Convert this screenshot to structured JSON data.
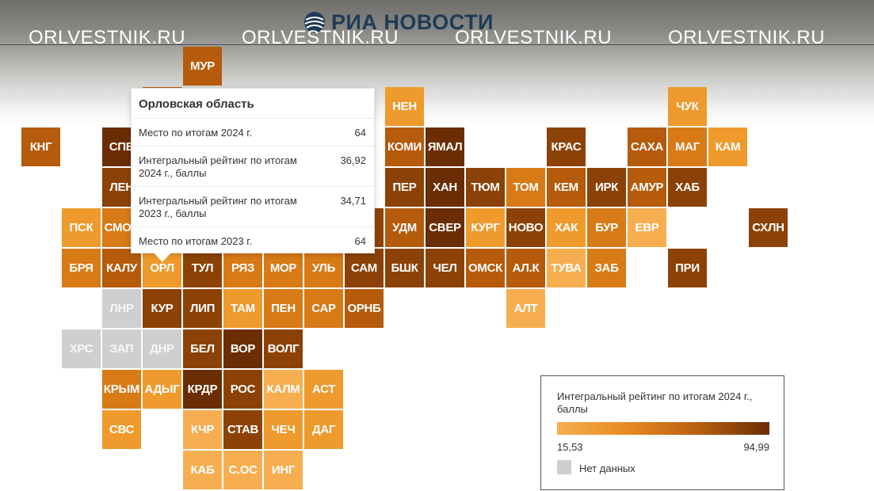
{
  "header": {
    "logo_text": "РИА НОВОСТИ",
    "watermarks": [
      "ORLVESTNIK.RU",
      "ORLVESTNIK.RU",
      "ORLVESTNIK.RU",
      "ORLVESTNIK.RU"
    ]
  },
  "colors": {
    "scale_low": "#f6ae50",
    "scale_high": "#6a2d04",
    "no_data": "#cfcfcf"
  },
  "tooltip": {
    "title": "Орловская область",
    "rows": [
      {
        "label": "Место по итогам 2024 г.",
        "value": "64"
      },
      {
        "label": "Интегральный рейтинг по итогам 2024 г., баллы",
        "value": "36,92"
      },
      {
        "label": "Интегральный рейтинг по итогам 2023 г., баллы",
        "value": "34,71"
      },
      {
        "label": "Место по итогам 2023 г.",
        "value": "64"
      }
    ]
  },
  "legend": {
    "title": "Интегральный рейтинг по итогам 2024 г., баллы",
    "min_label": "15,53",
    "max_label": "94,99",
    "no_data_label": "Нет данных"
  },
  "map_data": {
    "tiles": [
      {
        "label": "МУР",
        "col": 4,
        "row": 0,
        "level": 3
      },
      {
        "label": "",
        "col": 3,
        "row": 1,
        "level": 3
      },
      {
        "label": "НЕН",
        "col": 9,
        "row": 1,
        "level": 1
      },
      {
        "label": "ЧУК",
        "col": 16,
        "row": 1,
        "level": 1
      },
      {
        "label": "КНГ",
        "col": 0,
        "row": 2,
        "level": 3
      },
      {
        "label": "СПБ",
        "col": 2,
        "row": 2,
        "level": 5
      },
      {
        "label": "КОМИ",
        "col": 9,
        "row": 2,
        "level": 3
      },
      {
        "label": "ЯМАЛ",
        "col": 10,
        "row": 2,
        "level": 5
      },
      {
        "label": "КРАС",
        "col": 13,
        "row": 2,
        "level": 4
      },
      {
        "label": "САХА",
        "col": 15,
        "row": 2,
        "level": 3
      },
      {
        "label": "МАГ",
        "col": 16,
        "row": 2,
        "level": 2
      },
      {
        "label": "КАМ",
        "col": 17,
        "row": 2,
        "level": 1
      },
      {
        "label": "ЛЕН",
        "col": 2,
        "row": 3,
        "level": 4
      },
      {
        "label": "ПЕР",
        "col": 9,
        "row": 3,
        "level": 4
      },
      {
        "label": "ХАН",
        "col": 10,
        "row": 3,
        "level": 5
      },
      {
        "label": "ТЮМ",
        "col": 11,
        "row": 3,
        "level": 4
      },
      {
        "label": "ТОМ",
        "col": 12,
        "row": 3,
        "level": 2
      },
      {
        "label": "КЕМ",
        "col": 13,
        "row": 3,
        "level": 3
      },
      {
        "label": "ИРК",
        "col": 14,
        "row": 3,
        "level": 4
      },
      {
        "label": "АМУР",
        "col": 15,
        "row": 3,
        "level": 3
      },
      {
        "label": "ХАБ",
        "col": 16,
        "row": 3,
        "level": 4
      },
      {
        "label": "ПСК",
        "col": 1,
        "row": 4,
        "level": 1
      },
      {
        "label": "СМОЛ",
        "col": 2,
        "row": 4,
        "level": 2
      },
      {
        "label": "",
        "col": 8,
        "row": 4,
        "level": 4
      },
      {
        "label": "УДМ",
        "col": 9,
        "row": 4,
        "level": 3
      },
      {
        "label": "СВЕР",
        "col": 10,
        "row": 4,
        "level": 5
      },
      {
        "label": "КУРГ",
        "col": 11,
        "row": 4,
        "level": 1
      },
      {
        "label": "НОВО",
        "col": 12,
        "row": 4,
        "level": 4
      },
      {
        "label": "ХАК",
        "col": 13,
        "row": 4,
        "level": 1
      },
      {
        "label": "БУР",
        "col": 14,
        "row": 4,
        "level": 2
      },
      {
        "label": "ЕВР",
        "col": 15,
        "row": 4,
        "level": 0
      },
      {
        "label": "СХЛН",
        "col": 18,
        "row": 4,
        "level": 4
      },
      {
        "label": "БРЯ",
        "col": 1,
        "row": 5,
        "level": 2
      },
      {
        "label": "КАЛУ",
        "col": 2,
        "row": 5,
        "level": 3
      },
      {
        "label": "ОРЛ",
        "col": 3,
        "row": 5,
        "level": 1
      },
      {
        "label": "ТУЛ",
        "col": 4,
        "row": 5,
        "level": 4
      },
      {
        "label": "РЯЗ",
        "col": 5,
        "row": 5,
        "level": 2
      },
      {
        "label": "МОР",
        "col": 6,
        "row": 5,
        "level": 2
      },
      {
        "label": "УЛЬ",
        "col": 7,
        "row": 5,
        "level": 2
      },
      {
        "label": "САМ",
        "col": 8,
        "row": 5,
        "level": 4
      },
      {
        "label": "БШК",
        "col": 9,
        "row": 5,
        "level": 4
      },
      {
        "label": "ЧЕЛ",
        "col": 10,
        "row": 5,
        "level": 4
      },
      {
        "label": "ОМСК",
        "col": 11,
        "row": 5,
        "level": 3
      },
      {
        "label": "АЛ.К",
        "col": 12,
        "row": 5,
        "level": 3
      },
      {
        "label": "ТУВА",
        "col": 13,
        "row": 5,
        "level": 0
      },
      {
        "label": "ЗАБ",
        "col": 14,
        "row": 5,
        "level": 2
      },
      {
        "label": "ПРИ",
        "col": 16,
        "row": 5,
        "level": 4
      },
      {
        "label": "ЛНР",
        "col": 2,
        "row": 6,
        "level": -1
      },
      {
        "label": "КУР",
        "col": 3,
        "row": 6,
        "level": 4
      },
      {
        "label": "ЛИП",
        "col": 4,
        "row": 6,
        "level": 4
      },
      {
        "label": "ТАМ",
        "col": 5,
        "row": 6,
        "level": 1
      },
      {
        "label": "ПЕН",
        "col": 6,
        "row": 6,
        "level": 2
      },
      {
        "label": "САР",
        "col": 7,
        "row": 6,
        "level": 2
      },
      {
        "label": "ОРНБ",
        "col": 8,
        "row": 6,
        "level": 3
      },
      {
        "label": "АЛТ",
        "col": 12,
        "row": 6,
        "level": 0
      },
      {
        "label": "ХРС",
        "col": 1,
        "row": 7,
        "level": -1
      },
      {
        "label": "ЗАП",
        "col": 2,
        "row": 7,
        "level": -1
      },
      {
        "label": "ДНР",
        "col": 3,
        "row": 7,
        "level": -1
      },
      {
        "label": "БЕЛ",
        "col": 4,
        "row": 7,
        "level": 4
      },
      {
        "label": "ВОР",
        "col": 5,
        "row": 7,
        "level": 5
      },
      {
        "label": "ВОЛГ",
        "col": 6,
        "row": 7,
        "level": 4
      },
      {
        "label": "КРЫМ",
        "col": 2,
        "row": 8,
        "level": 2
      },
      {
        "label": "АДЫГ",
        "col": 3,
        "row": 8,
        "level": 1
      },
      {
        "label": "КРДР",
        "col": 4,
        "row": 8,
        "level": 5
      },
      {
        "label": "РОС",
        "col": 5,
        "row": 8,
        "level": 4
      },
      {
        "label": "КАЛМ",
        "col": 6,
        "row": 8,
        "level": 0
      },
      {
        "label": "АСТ",
        "col": 7,
        "row": 8,
        "level": 1
      },
      {
        "label": "СВС",
        "col": 2,
        "row": 9,
        "level": 1
      },
      {
        "label": "КЧР",
        "col": 4,
        "row": 9,
        "level": 0
      },
      {
        "label": "СТАВ",
        "col": 5,
        "row": 9,
        "level": 4
      },
      {
        "label": "ЧЕЧ",
        "col": 6,
        "row": 9,
        "level": 1
      },
      {
        "label": "ДАГ",
        "col": 7,
        "row": 9,
        "level": 1
      },
      {
        "label": "КАБ",
        "col": 4,
        "row": 10,
        "level": 0
      },
      {
        "label": "С.ОС",
        "col": 5,
        "row": 10,
        "level": 0
      },
      {
        "label": "ИНГ",
        "col": 6,
        "row": 10,
        "level": 0
      }
    ]
  }
}
